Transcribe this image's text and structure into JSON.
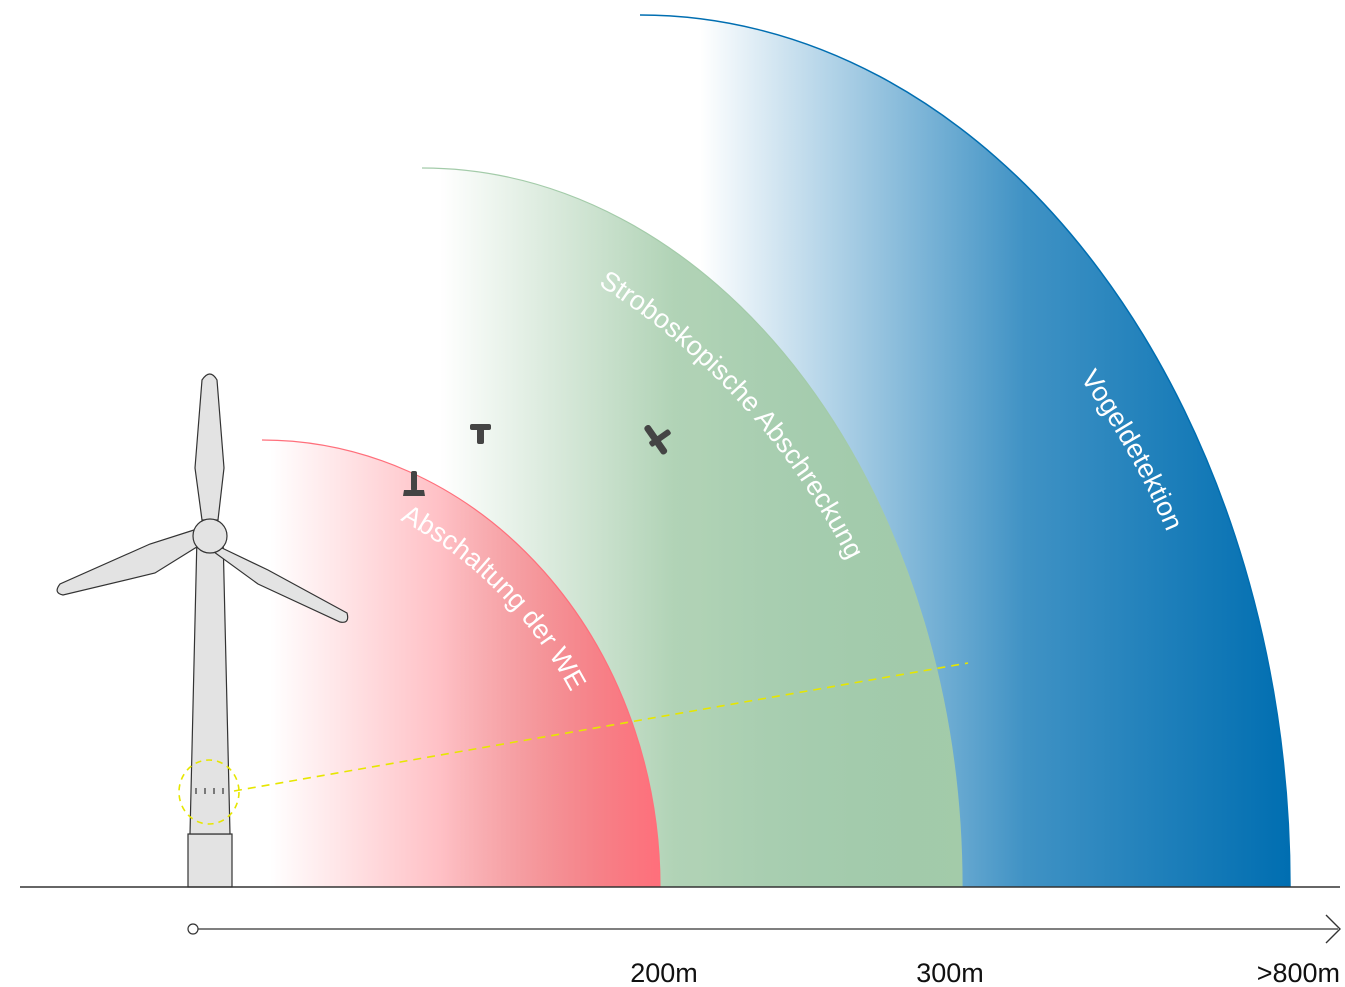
{
  "zones": [
    {
      "label": "Abschaltung der WEA",
      "color": "#ff6f7b"
    },
    {
      "label": "Stroboskopische Abschreckung",
      "color": "#a3cba9"
    },
    {
      "label": "Vogeldetektion",
      "color": "#006eb1"
    }
  ],
  "axis": {
    "ticks": [
      "200m",
      "300m",
      ">800m"
    ]
  },
  "colors": {
    "ground": "#333333",
    "turbine_fill": "#e3e3e3",
    "turbine_stroke": "#333333",
    "detection_line": "#e6e600",
    "bird": "#444444"
  },
  "icons": [
    "wind-turbine-icon",
    "sensor-circle-icon",
    "bird-icon",
    "arrow-right-icon"
  ]
}
